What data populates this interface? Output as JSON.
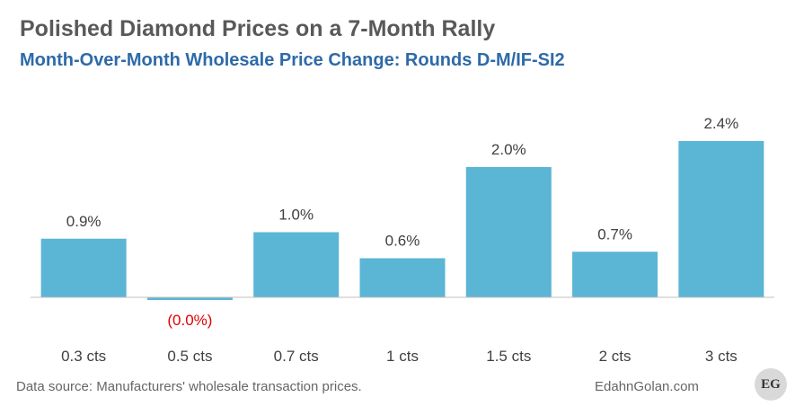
{
  "title": "Polished Diamond Prices on a 7-Month Rally",
  "subtitle": "Month-Over-Month Wholesale Price Change: Rounds D-M/IF-SI2",
  "footer": {
    "source": "Data source: Manufacturers' wholesale transaction prices.",
    "site": "EdahnGolan.com",
    "logo_text": "EG"
  },
  "colors": {
    "bar": "#5bb5d5",
    "positive_label": "#404040",
    "negative_label": "#e00000",
    "baseline": "#bfbfbf",
    "subtitle": "#2e6aa8"
  },
  "chart_data": {
    "type": "bar",
    "title": "Polished Diamond Prices on a 7-Month Rally",
    "subtitle": "Month-Over-Month Wholesale Price Change: Rounds D-M/IF-SI2",
    "xlabel": "",
    "ylabel": "",
    "unit": "%",
    "categories": [
      "0.3 cts",
      "0.5 cts",
      "0.7 cts",
      "1 cts",
      "1.5 cts",
      "2 cts",
      "3 cts"
    ],
    "values": [
      0.9,
      -0.01,
      1.0,
      0.6,
      2.0,
      0.7,
      2.4
    ],
    "value_labels": [
      "0.9%",
      "(0.0%)",
      "1.0%",
      "0.6%",
      "2.0%",
      "0.7%",
      "2.4%"
    ],
    "ylim": [
      -0.1,
      2.6
    ],
    "grid": false,
    "legend": "none"
  }
}
